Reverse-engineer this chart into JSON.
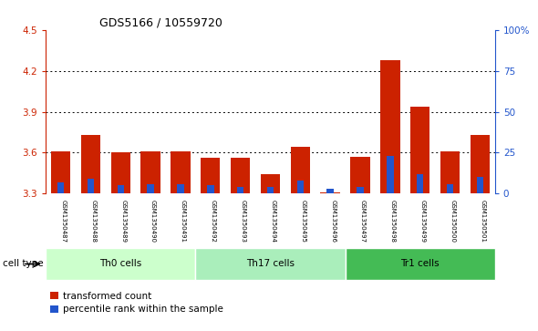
{
  "title": "GDS5166 / 10559720",
  "samples": [
    "GSM1350487",
    "GSM1350488",
    "GSM1350489",
    "GSM1350490",
    "GSM1350491",
    "GSM1350492",
    "GSM1350493",
    "GSM1350494",
    "GSM1350495",
    "GSM1350496",
    "GSM1350497",
    "GSM1350498",
    "GSM1350499",
    "GSM1350500",
    "GSM1350501"
  ],
  "transformed_count": [
    3.61,
    3.73,
    3.6,
    3.61,
    3.61,
    3.56,
    3.56,
    3.44,
    3.64,
    3.31,
    3.57,
    4.28,
    3.94,
    3.61,
    3.73
  ],
  "percentile_rank": [
    7,
    9,
    5,
    6,
    6,
    5,
    4,
    4,
    8,
    3,
    4,
    23,
    12,
    6,
    10
  ],
  "ylim_left": [
    3.3,
    4.5
  ],
  "ylim_right": [
    0,
    100
  ],
  "yticks_left": [
    3.3,
    3.6,
    3.9,
    4.2,
    4.5
  ],
  "yticks_right": [
    0,
    25,
    50,
    75,
    100
  ],
  "ytick_labels_right": [
    "0",
    "25",
    "50",
    "75",
    "100%"
  ],
  "bar_color_red": "#cc2200",
  "bar_color_blue": "#2255cc",
  "bar_width": 0.65,
  "cell_groups": [
    {
      "label": "Th0 cells",
      "start": 0,
      "end": 5,
      "color": "#ccffcc"
    },
    {
      "label": "Th17 cells",
      "start": 5,
      "end": 10,
      "color": "#aaeebb"
    },
    {
      "label": "Tr1 cells",
      "start": 10,
      "end": 15,
      "color": "#44bb55"
    }
  ],
  "cell_type_label": "cell type",
  "legend_red": "transformed count",
  "legend_blue": "percentile rank within the sample",
  "background_color": "#ffffff",
  "tick_color_left": "#cc2200",
  "tick_color_right": "#2255cc",
  "base_value": 3.3
}
